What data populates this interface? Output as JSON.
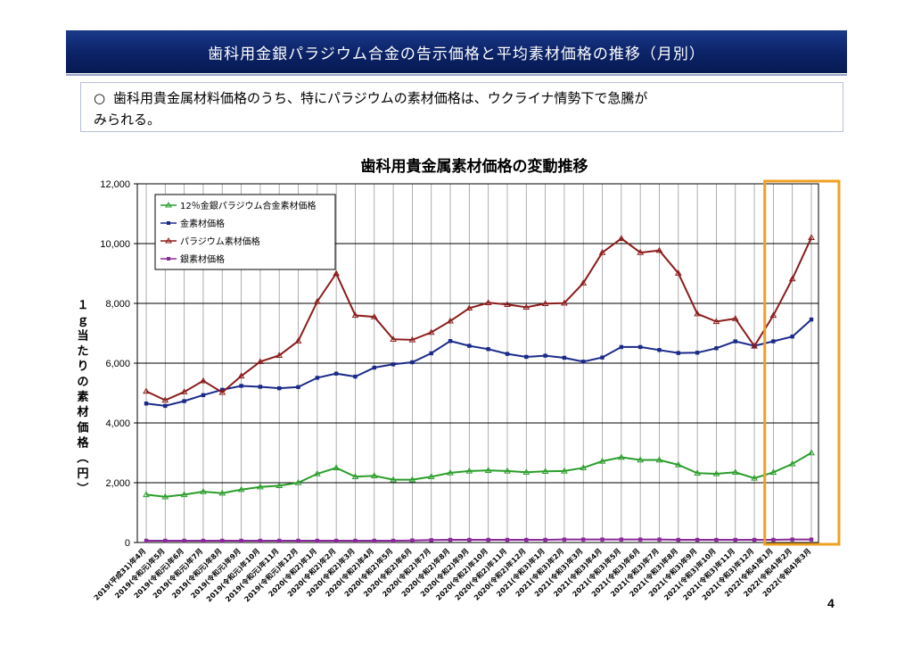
{
  "header": {
    "title": "歯科用金銀パラジウム合金の告示価格と平均素材価格の推移（月別）"
  },
  "note": {
    "bullet": "○",
    "line1": "歯科用貴金属材料価格のうち、特にパラジウムの素材価格は、ウクライナ情勢下で急騰が",
    "line2": "みられる。"
  },
  "page_number": "4",
  "chart_data": {
    "type": "line",
    "title": "歯科用貴金属素材価格の変動推移",
    "ylabel": "１ｇ当たりの素材価格（円）",
    "xlabel": "",
    "ylim": [
      0,
      12000
    ],
    "yticks": [
      "0",
      "2,000",
      "4,000",
      "6,000",
      "8,000",
      "10,000",
      "12,000"
    ],
    "ytick_values": [
      0,
      2000,
      4000,
      6000,
      8000,
      10000,
      12000
    ],
    "grid": true,
    "legend_position": "top-left",
    "highlight": {
      "from_index": 33,
      "to_index": 36,
      "color": "#f0a020"
    },
    "categories": [
      "2019(平成31)年4月",
      "2019(令和元)年5月",
      "2019(令和元)年6月",
      "2019(令和元)年7月",
      "2019(令和元)年8月",
      "2019(令和元)年9月",
      "2019(令和元)年10月",
      "2019(令和元)年11月",
      "2019(令和元)年12月",
      "2020(令和2)年1月",
      "2020(令和2)年2月",
      "2020(令和2)年3月",
      "2020(令和2)年4月",
      "2020(令和2)年5月",
      "2020(令和2)年6月",
      "2020(令和2)年7月",
      "2020(令和2)年8月",
      "2020(令和2)年9月",
      "2020(令和2)年10月",
      "2020(令和2)年11月",
      "2020(令和2)年12月",
      "2021(令和3)年1月",
      "2021(令和3)年2月",
      "2021(令和3)年3月",
      "2021(令和3)年4月",
      "2021(令和3)年5月",
      "2021(令和3)年6月",
      "2021(令和3)年7月",
      "2021(令和3)年8月",
      "2021(令和3)年9月",
      "2021(令和3)年10月",
      "2021(令和3)年11月",
      "2021(令和3)年12月",
      "2022(令和4)年1月",
      "2022(令和4)年2月",
      "2022(令和4)年3月"
    ],
    "series": [
      {
        "name": "12％金銀パラジウム合金素材価格",
        "color": "#2a9d2a",
        "marker": "triangle",
        "values": [
          1600,
          1530,
          1600,
          1700,
          1650,
          1770,
          1860,
          1900,
          2000,
          2300,
          2500,
          2200,
          2230,
          2100,
          2100,
          2200,
          2330,
          2390,
          2410,
          2390,
          2350,
          2380,
          2390,
          2500,
          2720,
          2850,
          2760,
          2760,
          2600,
          2320,
          2300,
          2350,
          2150,
          2350,
          2630,
          3000
        ]
      },
      {
        "name": "金素材価格",
        "color": "#1a2a8a",
        "marker": "square",
        "values": [
          4650,
          4570,
          4730,
          4930,
          5110,
          5240,
          5210,
          5160,
          5200,
          5510,
          5650,
          5550,
          5850,
          5960,
          6030,
          6330,
          6740,
          6580,
          6470,
          6310,
          6210,
          6250,
          6180,
          6050,
          6190,
          6540,
          6540,
          6440,
          6340,
          6350,
          6500,
          6730,
          6580,
          6730,
          6890,
          7460
        ]
      },
      {
        "name": "パラジウム素材価格",
        "color": "#8c1c1c",
        "marker": "triangle",
        "values": [
          5060,
          4760,
          5040,
          5410,
          5020,
          5570,
          6050,
          6260,
          6740,
          8060,
          9000,
          7600,
          7550,
          6800,
          6780,
          7030,
          7410,
          7840,
          8020,
          7960,
          7870,
          7990,
          8010,
          8680,
          9700,
          10170,
          9700,
          9770,
          9010,
          7650,
          7390,
          7490,
          6570,
          7600,
          8820,
          10200
        ]
      },
      {
        "name": "銀素材価格",
        "color": "#8a2a9a",
        "marker": "square",
        "values": [
          60,
          60,
          60,
          60,
          60,
          60,
          60,
          60,
          60,
          60,
          60,
          60,
          60,
          60,
          70,
          80,
          90,
          90,
          90,
          90,
          90,
          90,
          100,
          100,
          100,
          100,
          100,
          100,
          90,
          90,
          90,
          90,
          90,
          90,
          100,
          100
        ]
      }
    ]
  }
}
